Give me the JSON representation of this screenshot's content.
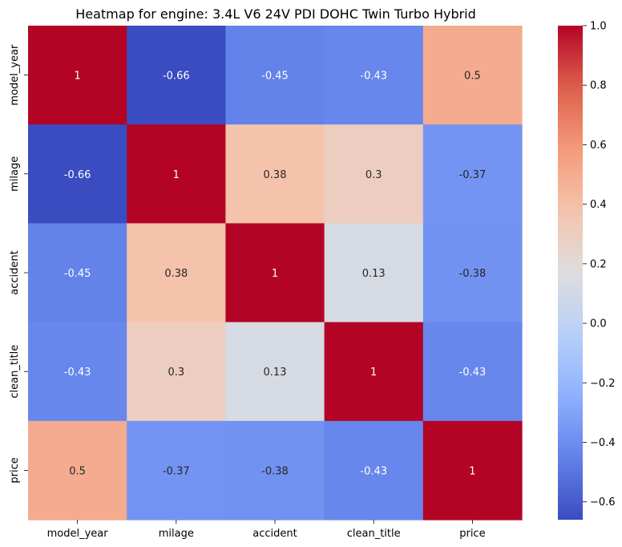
{
  "chart_data": {
    "type": "heatmap",
    "title": "Heatmap for engine: 3.4L V6 24V PDI DOHC Twin Turbo Hybrid",
    "xlabel": "",
    "ylabel": "",
    "x_categories": [
      "model_year",
      "milage",
      "accident",
      "clean_title",
      "price"
    ],
    "y_categories": [
      "model_year",
      "milage",
      "accident",
      "clean_title",
      "price"
    ],
    "values": [
      [
        1,
        -0.66,
        -0.45,
        -0.43,
        0.5
      ],
      [
        -0.66,
        1,
        0.38,
        0.3,
        -0.37
      ],
      [
        -0.45,
        0.38,
        1,
        0.13,
        -0.38
      ],
      [
        -0.43,
        0.3,
        0.13,
        1,
        -0.43
      ],
      [
        0.5,
        -0.37,
        -0.38,
        -0.43,
        1
      ]
    ],
    "value_labels": [
      [
        "1",
        "-0.66",
        "-0.45",
        "-0.43",
        "0.5"
      ],
      [
        "-0.66",
        "1",
        "0.38",
        "0.3",
        "-0.37"
      ],
      [
        "-0.45",
        "0.38",
        "1",
        "0.13",
        "-0.38"
      ],
      [
        "-0.43",
        "0.3",
        "0.13",
        "1",
        "-0.43"
      ],
      [
        "0.5",
        "-0.37",
        "-0.38",
        "-0.43",
        "1"
      ]
    ],
    "colormap": "coolwarm",
    "vmin": -0.66,
    "vmax": 1,
    "colorbar_ticks": [
      1.0,
      0.8,
      0.6,
      0.4,
      0.2,
      0.0,
      -0.2,
      -0.4,
      -0.6
    ],
    "colorbar_tick_labels": [
      "1.0",
      "0.8",
      "0.6",
      "0.4",
      "0.2",
      "0.0",
      "−0.2",
      "−0.4",
      "−0.6"
    ],
    "grid": false,
    "legend": "colorbar-right"
  }
}
